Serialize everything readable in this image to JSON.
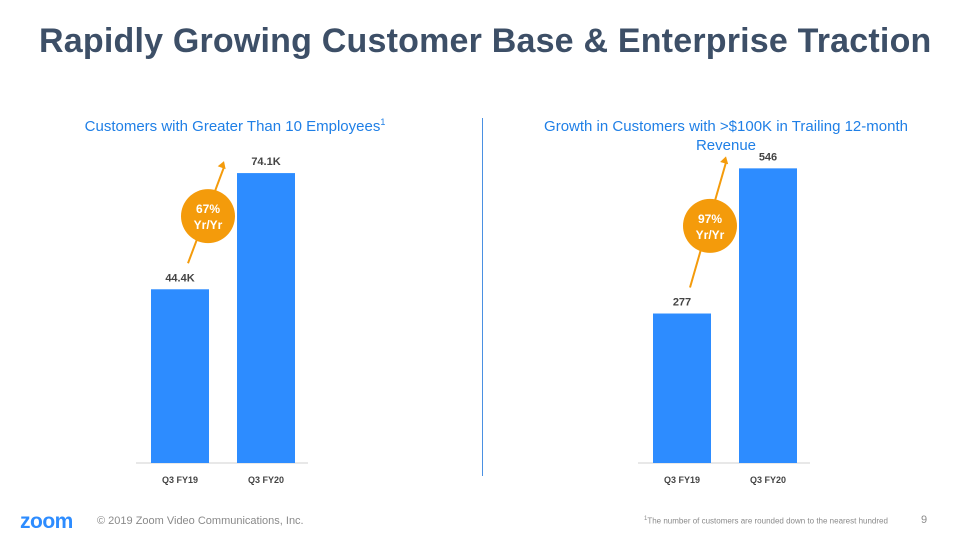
{
  "title": "Rapidly Growing Customer Base & Enterprise Traction",
  "colors": {
    "bar": "#2d8cff",
    "growth": "#f49b0b",
    "title": "#3d4f67",
    "subtitle": "#1f7fe6"
  },
  "chart_data": [
    {
      "type": "bar",
      "title": "Customers with Greater Than 10 Employees",
      "title_superscript": "1",
      "categories": [
        "Q3 FY19",
        "Q3 FY20"
      ],
      "values": [
        44.4,
        74.1
      ],
      "value_labels": [
        "44.4K",
        "74.1K"
      ],
      "unit": "thousand customers",
      "ylim": [
        0,
        80
      ],
      "growth_label_line1": "67%",
      "growth_label_line2": "Yr/Yr"
    },
    {
      "type": "bar",
      "title": "Growth in Customers with >$100K in Trailing 12-month Revenue",
      "categories": [
        "Q3 FY19",
        "Q3 FY20"
      ],
      "values": [
        277,
        546
      ],
      "value_labels": [
        "277",
        "546"
      ],
      "unit": "customers",
      "ylim": [
        0,
        580
      ],
      "growth_label_line1": "97%",
      "growth_label_line2": "Yr/Yr"
    }
  ],
  "footer": {
    "logo": "zoom",
    "copyright": "© 2019 Zoom Video Communications, Inc.",
    "footnote_marker": "1",
    "footnote": "The number of customers are rounded down to the nearest hundred",
    "page_number": "9"
  }
}
